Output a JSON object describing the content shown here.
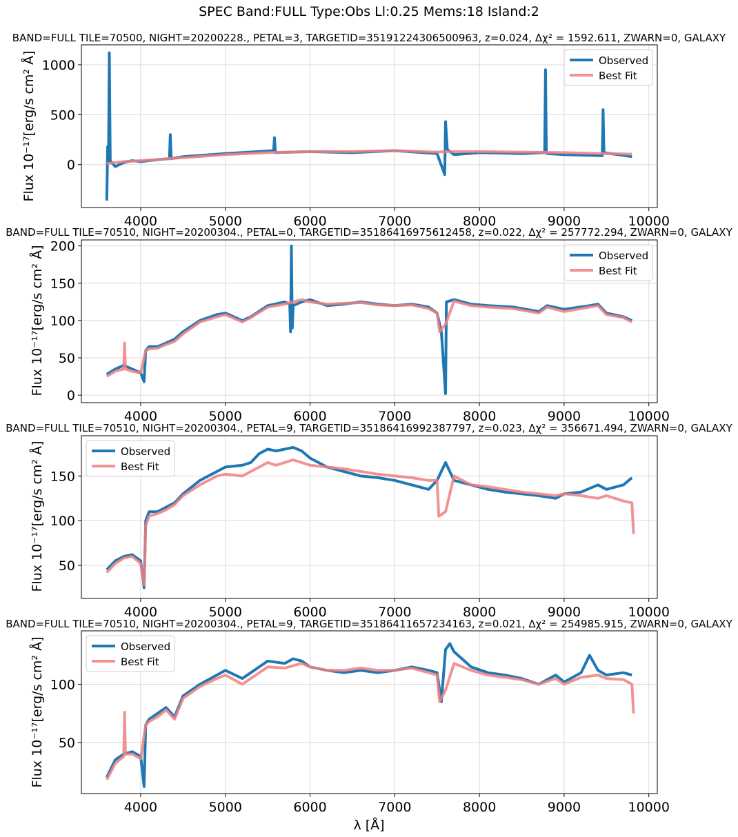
{
  "suptitle": "SPEC Band:FULL Type:Obs Ll:0.25 Mems:18 Island:2",
  "xlabel": "λ [Å]",
  "ylabel": "Flux 10⁻¹⁷[erg/s cm² Å]",
  "colors": {
    "observed": "#1f77b4",
    "best_fit": "#f08080",
    "grid": "#d9d9d9"
  },
  "chart_data": [
    {
      "type": "line",
      "title": "BAND=FULL TILE=70500, NIGHT=20200228., PETAL=3, TARGETID=35191224306500963, z=0.024, Δχ² = 1592.611, ZWARN=0, GALAXY",
      "xlim": [
        3300,
        10100
      ],
      "ylim": [
        -430,
        1200
      ],
      "xticks": [
        4000,
        5000,
        6000,
        7000,
        8000,
        9000,
        10000
      ],
      "yticks": [
        0,
        500,
        1000
      ],
      "legend_loc": "top-right",
      "grid": true,
      "series": [
        {
          "name": "Observed",
          "x": [
            3600,
            3610,
            3620,
            3630,
            3640,
            3700,
            3800,
            3900,
            4000,
            4200,
            4340,
            4350,
            4360,
            4500,
            5000,
            5570,
            5580,
            5590,
            6000,
            6500,
            7000,
            7500,
            7590,
            7600,
            7620,
            7700,
            8000,
            8500,
            8770,
            8780,
            8790,
            8800,
            9000,
            9450,
            9460,
            9470,
            9800
          ],
          "y": [
            -360,
            180,
            30,
            1120,
            40,
            -20,
            20,
            40,
            30,
            50,
            60,
            300,
            60,
            80,
            110,
            140,
            270,
            120,
            130,
            120,
            140,
            110,
            -100,
            430,
            150,
            100,
            120,
            110,
            120,
            950,
            120,
            110,
            100,
            90,
            550,
            120,
            80
          ]
        },
        {
          "name": "Best Fit",
          "x": [
            3600,
            3700,
            3800,
            3900,
            4000,
            4200,
            4500,
            5000,
            5500,
            6000,
            6500,
            7000,
            7500,
            7600,
            8000,
            8500,
            9000,
            9500,
            9800
          ],
          "y": [
            10,
            20,
            30,
            35,
            40,
            50,
            70,
            100,
            120,
            130,
            130,
            140,
            125,
            130,
            130,
            125,
            120,
            110,
            105
          ]
        }
      ]
    },
    {
      "type": "line",
      "title": "BAND=FULL TILE=70510, NIGHT=20200304., PETAL=0, TARGETID=35186416975612458, z=0.022, Δχ² = 257772.294, ZWARN=0, GALAXY",
      "xlim": [
        3300,
        10100
      ],
      "ylim": [
        -10,
        208
      ],
      "xticks": [
        4000,
        5000,
        6000,
        7000,
        8000,
        9000,
        10000
      ],
      "yticks": [
        0,
        50,
        100,
        150,
        200
      ],
      "legend_loc": "top-right",
      "grid": true,
      "series": [
        {
          "name": "Observed",
          "x": [
            3600,
            3700,
            3800,
            3900,
            4000,
            4040,
            4060,
            4100,
            4200,
            4300,
            4400,
            4500,
            4700,
            4900,
            5000,
            5200,
            5300,
            5500,
            5700,
            5760,
            5770,
            5780,
            5790,
            5800,
            5900,
            6000,
            6200,
            6400,
            6600,
            6800,
            7000,
            7200,
            7400,
            7500,
            7550,
            7600,
            7610,
            7700,
            7900,
            8100,
            8400,
            8700,
            8800,
            9000,
            9300,
            9400,
            9500,
            9700,
            9800
          ],
          "y": [
            28,
            35,
            40,
            35,
            30,
            18,
            60,
            65,
            65,
            70,
            75,
            85,
            100,
            108,
            110,
            100,
            105,
            120,
            125,
            122,
            85,
            200,
            90,
            120,
            125,
            128,
            120,
            122,
            125,
            122,
            120,
            122,
            118,
            110,
            85,
            2,
            125,
            128,
            122,
            120,
            118,
            112,
            120,
            115,
            120,
            122,
            110,
            105,
            100
          ]
        },
        {
          "name": "Best Fit",
          "x": [
            3600,
            3700,
            3800,
            3810,
            3820,
            3900,
            4000,
            4060,
            4100,
            4200,
            4300,
            4400,
            4500,
            4700,
            4900,
            5000,
            5200,
            5300,
            5500,
            5700,
            5800,
            5900,
            6000,
            6200,
            6400,
            6600,
            6800,
            7000,
            7200,
            7400,
            7500,
            7530,
            7600,
            7700,
            7900,
            8100,
            8400,
            8700,
            8800,
            9000,
            9300,
            9400,
            9500,
            9700,
            9800
          ],
          "y": [
            25,
            32,
            35,
            70,
            35,
            32,
            30,
            60,
            62,
            63,
            68,
            72,
            82,
            98,
            105,
            108,
            98,
            104,
            118,
            122,
            125,
            128,
            125,
            122,
            123,
            124,
            121,
            120,
            121,
            116,
            110,
            85,
            95,
            126,
            120,
            118,
            116,
            110,
            118,
            112,
            118,
            120,
            108,
            104,
            98
          ]
        }
      ]
    },
    {
      "type": "line",
      "title": "BAND=FULL TILE=70510, NIGHT=20200304., PETAL=9, TARGETID=35186416992387797, z=0.023, Δχ² = 356671.494, ZWARN=0, GALAXY",
      "xlim": [
        3300,
        10100
      ],
      "ylim": [
        13,
        195
      ],
      "xticks": [
        4000,
        5000,
        6000,
        7000,
        8000,
        9000,
        10000
      ],
      "yticks": [
        50,
        100,
        150
      ],
      "legend_loc": "top-left",
      "grid": true,
      "series": [
        {
          "name": "Observed",
          "x": [
            3600,
            3700,
            3800,
            3900,
            4000,
            4040,
            4060,
            4100,
            4200,
            4300,
            4400,
            4500,
            4700,
            4900,
            5000,
            5200,
            5300,
            5400,
            5500,
            5600,
            5700,
            5800,
            5900,
            6000,
            6200,
            6400,
            6600,
            6800,
            7000,
            7200,
            7400,
            7500,
            7600,
            7700,
            7900,
            8100,
            8300,
            8500,
            8700,
            8900,
            9000,
            9200,
            9400,
            9500,
            9700,
            9800
          ],
          "y": [
            45,
            55,
            60,
            62,
            55,
            25,
            100,
            110,
            110,
            115,
            120,
            130,
            145,
            155,
            160,
            162,
            165,
            175,
            180,
            178,
            180,
            182,
            178,
            170,
            160,
            155,
            150,
            148,
            145,
            140,
            135,
            145,
            165,
            145,
            140,
            135,
            132,
            130,
            128,
            125,
            130,
            132,
            140,
            135,
            140,
            148
          ]
        },
        {
          "name": "Best Fit",
          "x": [
            3600,
            3700,
            3800,
            3900,
            4000,
            4040,
            4060,
            4100,
            4200,
            4300,
            4400,
            4500,
            4700,
            4900,
            5000,
            5200,
            5300,
            5400,
            5500,
            5600,
            5700,
            5800,
            5900,
            6000,
            6200,
            6400,
            6600,
            6800,
            7000,
            7200,
            7400,
            7500,
            7520,
            7600,
            7700,
            7900,
            8100,
            8300,
            8500,
            8700,
            8900,
            9000,
            9200,
            9400,
            9500,
            9700,
            9800,
            9820
          ],
          "y": [
            42,
            52,
            58,
            60,
            52,
            28,
            95,
            105,
            108,
            112,
            118,
            128,
            140,
            150,
            152,
            150,
            155,
            160,
            165,
            162,
            165,
            168,
            165,
            162,
            160,
            158,
            155,
            152,
            150,
            148,
            145,
            145,
            105,
            110,
            150,
            140,
            138,
            135,
            132,
            130,
            128,
            130,
            128,
            125,
            128,
            122,
            120,
            85
          ]
        }
      ]
    },
    {
      "type": "line",
      "title": "BAND=FULL TILE=70510, NIGHT=20200304., PETAL=9, TARGETID=35186411657234163, z=0.021, Δχ² = 254985.915, ZWARN=0, GALAXY",
      "xlim": [
        3300,
        10100
      ],
      "ylim": [
        6,
        146
      ],
      "xticks": [
        4000,
        5000,
        6000,
        7000,
        8000,
        9000,
        10000
      ],
      "yticks": [
        50,
        100
      ],
      "legend_loc": "top-left",
      "grid": true,
      "series": [
        {
          "name": "Observed",
          "x": [
            3600,
            3700,
            3800,
            3900,
            4000,
            4040,
            4060,
            4100,
            4200,
            4300,
            4400,
            4500,
            4700,
            4900,
            5000,
            5200,
            5300,
            5500,
            5700,
            5800,
            5900,
            6000,
            6200,
            6400,
            6600,
            6800,
            7000,
            7200,
            7400,
            7500,
            7550,
            7600,
            7650,
            7700,
            7900,
            8100,
            8300,
            8500,
            8700,
            8900,
            9000,
            9200,
            9300,
            9400,
            9500,
            9700,
            9800
          ],
          "y": [
            20,
            35,
            40,
            42,
            38,
            12,
            65,
            70,
            75,
            80,
            72,
            90,
            100,
            108,
            112,
            105,
            110,
            120,
            118,
            122,
            120,
            115,
            112,
            110,
            112,
            110,
            112,
            115,
            112,
            110,
            85,
            130,
            135,
            128,
            115,
            110,
            108,
            105,
            100,
            108,
            102,
            110,
            125,
            112,
            108,
            110,
            108
          ]
        },
        {
          "name": "Best Fit",
          "x": [
            3600,
            3700,
            3800,
            3810,
            3820,
            3900,
            4000,
            4060,
            4100,
            4200,
            4300,
            4400,
            4500,
            4700,
            4900,
            5000,
            5200,
            5300,
            5500,
            5700,
            5800,
            5900,
            6000,
            6200,
            6400,
            6600,
            6800,
            7000,
            7200,
            7400,
            7500,
            7530,
            7600,
            7700,
            7900,
            8100,
            8300,
            8500,
            8700,
            8900,
            9000,
            9200,
            9400,
            9500,
            9700,
            9800,
            9820
          ],
          "y": [
            18,
            32,
            38,
            76,
            40,
            40,
            36,
            65,
            68,
            72,
            78,
            70,
            88,
            98,
            105,
            108,
            100,
            105,
            115,
            114,
            116,
            118,
            115,
            112,
            112,
            114,
            112,
            112,
            114,
            110,
            108,
            85,
            95,
            118,
            112,
            108,
            106,
            104,
            100,
            105,
            100,
            106,
            108,
            105,
            104,
            100,
            75
          ]
        }
      ]
    }
  ]
}
